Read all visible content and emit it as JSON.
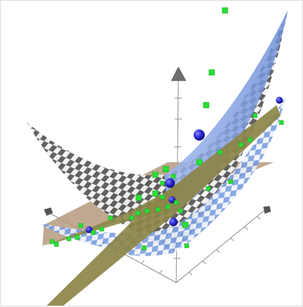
{
  "chart_data": {
    "type": "scatter",
    "dimensions": 3,
    "title": "",
    "axes": {
      "x": {
        "label": ""
      },
      "y": {
        "label": ""
      },
      "z": {
        "label": ""
      }
    },
    "grid": true,
    "legend": "none",
    "surfaces": [
      {
        "shape": "saddle (checkered grey-white)",
        "color_a": "#5a5a5a",
        "color_b": "#f2f2f2"
      },
      {
        "shape": "tilted plane (checkered blue-white)",
        "color_a": "#7b9fe0",
        "color_b": "#f2f2f2"
      },
      {
        "shape": "tilted plane (olive)",
        "color": "#8c8648"
      },
      {
        "shape": "tilted plane (tan)",
        "color": "#b59a7c"
      }
    ],
    "series": [
      {
        "marker": "sphere",
        "color": "#2b2bd6",
        "count": 6
      },
      {
        "marker": "cube",
        "color": "#29e035",
        "count": 36
      }
    ],
    "colors": {
      "axis": "#8a8a8a",
      "axis_cone": "#6e6e6e",
      "background": "#ffffff"
    }
  }
}
